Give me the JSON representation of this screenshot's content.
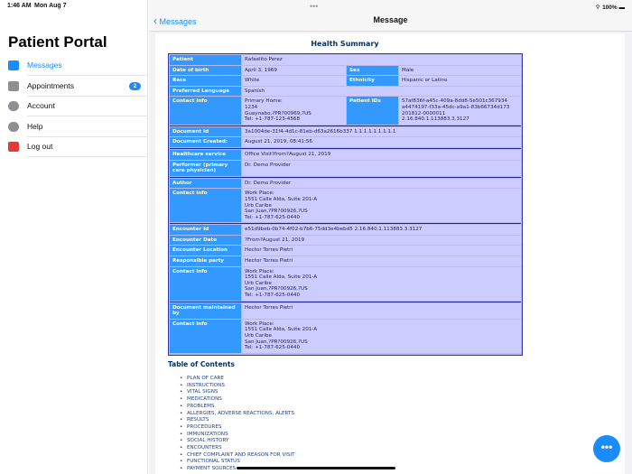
{
  "status": {
    "time": "1:46 AM",
    "date": "Mon Aug 7",
    "battery": "100%"
  },
  "sidebar": {
    "title": "Patient Portal",
    "items": [
      {
        "label": "Messages",
        "icon": "envelope-icon",
        "active": true
      },
      {
        "label": "Appointments",
        "icon": "calendar-icon",
        "badge": "2"
      },
      {
        "label": "Account",
        "icon": "person-icon"
      },
      {
        "label": "Help",
        "icon": "lifebuoy-icon"
      },
      {
        "label": "Log out",
        "icon": "logout-icon"
      }
    ]
  },
  "navbar": {
    "back": "Messages",
    "title": "Message"
  },
  "doc": {
    "title": "Health Summary",
    "sections": [
      [
        {
          "label": "Patient",
          "value": "Rafaelito Perez"
        },
        {
          "label": "Date of birth",
          "value": "April 3, 1969",
          "label2": "Sex",
          "value2": "Male"
        },
        {
          "label": "Race",
          "value": "White",
          "label2": "Ethnicity",
          "value2": "Hispanic or Latino"
        },
        {
          "label": "Preferred Language",
          "value": "Spanish"
        },
        {
          "label": "Contact info",
          "value": "Primary Home:\n1234\nGuaynabo,?PR?00969,?US\nTel: +1-787-123-4568",
          "label2": "Patient IDs",
          "value2": "57af836f-a45c-409a-8dd8-5e501c367934\na4474197-f33a-45dc-a9a1-83b66734d173\n201812-0000011\n2.16.840.1.113883.3.3127"
        }
      ],
      [
        {
          "label": "Document Id",
          "value": "3a1004de-31f4-4d1c-81eb-d63a2616b337 1.1.1.1.1.1.1.1.1"
        },
        {
          "label": "Document Created:",
          "value": "August 21, 2019, 08:41:56"
        }
      ],
      [
        {
          "label": "Healthcare service",
          "value": "Office Visit?from?August 21, 2019"
        },
        {
          "label": "Performer (primary care physician)",
          "value": "Dr. Demo Provider"
        }
      ],
      [
        {
          "label": "Author",
          "value": "Dr. Demo Provider"
        },
        {
          "label": "Contact info",
          "value": "Work Place:\n1551 Calle Alda, Suite 201-A\nUrb Caribe\nSan Juan,?PR?00926,?US\nTel: +1-787-625-0440"
        }
      ],
      [
        {
          "label": "Encounter Id",
          "value": "e51d9beb-0b74-4f02-b7b6-75dd3e4bebd5 2.16.840.1.113883.3.3127"
        },
        {
          "label": "Encounter Date",
          "value": "?From?August 21, 2019"
        },
        {
          "label": "Encounter Location",
          "value": "Hector Torres Pietri"
        },
        {
          "label": "Responsible party",
          "value": "Hector Torres Pietri"
        },
        {
          "label": "Contact info",
          "value": "Work Place:\n1551 Calle Alda, Suite 201-A\nUrb Caribe\nSan Juan,?PR?00926,?US\nTel: +1-787-625-0440"
        }
      ],
      [
        {
          "label": "Document maintained by",
          "value": "Hector Torres Pietri"
        },
        {
          "label": "Contact info",
          "value": "Work Place:\n1551 Calle Alda, Suite 201-A\nUrb Caribe\nSan Juan,?PR?00926,?US\nTel: +1-787-625-0440"
        }
      ]
    ],
    "toc_title": "Table of Contents",
    "toc": [
      "PLAN OF CARE",
      "INSTRUCTIONS",
      "VITAL SIGNS",
      "MEDICATIONS",
      "PROBLEMS",
      "ALLERGIES, ADVERSE REACTIONS, ALERTS",
      "RESULTS",
      "PROCEDURES",
      "IMMUNIZATIONS",
      "SOCIAL HISTORY",
      "ENCOUNTERS",
      "CHIEF COMPLAINT AND REASON FOR VISIT",
      "FUNCTIONAL STATUS",
      "PAYMENT SOURCES"
    ]
  },
  "fab": {
    "label": "•••"
  },
  "colors": {
    "accent": "#1a8cff",
    "label_cell": "#3399ff",
    "value_cell": "#ccccff",
    "logout": "#e53935"
  }
}
